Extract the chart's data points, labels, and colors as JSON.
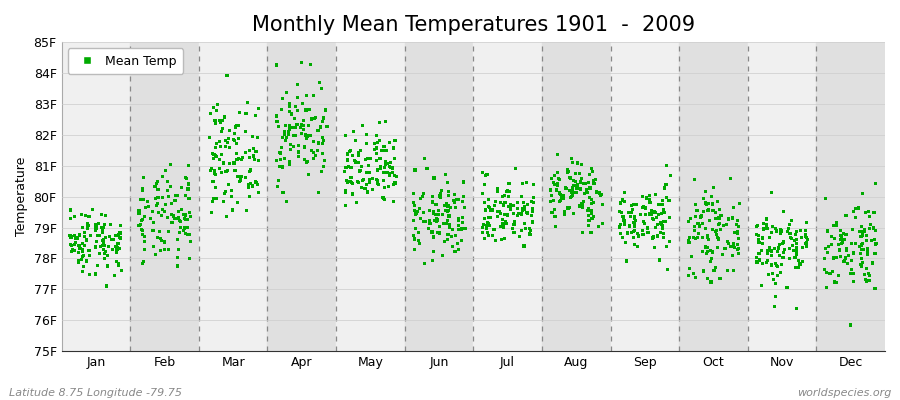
{
  "title": "Monthly Mean Temperatures 1901  -  2009",
  "ylabel": "Temperature",
  "xlabel_months": [
    "Jan",
    "Feb",
    "Mar",
    "Apr",
    "May",
    "Jun",
    "Jul",
    "Aug",
    "Sep",
    "Oct",
    "Nov",
    "Dec"
  ],
  "ytick_labels": [
    "75F",
    "76F",
    "77F",
    "78F",
    "79F",
    "80F",
    "81F",
    "82F",
    "83F",
    "84F",
    "85F"
  ],
  "ytick_values": [
    75,
    76,
    77,
    78,
    79,
    80,
    81,
    82,
    83,
    84,
    85
  ],
  "ylim": [
    75,
    85
  ],
  "legend_label": "Mean Temp",
  "marker_color": "#00aa00",
  "background_color": "#ffffff",
  "band_color_light": "#f0f0f0",
  "band_color_dark": "#e0e0e0",
  "footer_left": "Latitude 8.75 Longitude -79.75",
  "footer_right": "worldspecies.org",
  "title_fontsize": 15,
  "axis_label_fontsize": 9,
  "tick_fontsize": 9,
  "footer_fontsize": 8,
  "n_years": 109,
  "month_means": [
    78.55,
    79.25,
    81.3,
    82.1,
    80.8,
    79.3,
    79.5,
    80.1,
    79.25,
    78.8,
    78.35,
    78.45
  ],
  "month_stds": [
    0.55,
    0.75,
    0.85,
    0.85,
    0.65,
    0.65,
    0.55,
    0.55,
    0.55,
    0.65,
    0.65,
    0.75
  ],
  "random_seed": 42
}
